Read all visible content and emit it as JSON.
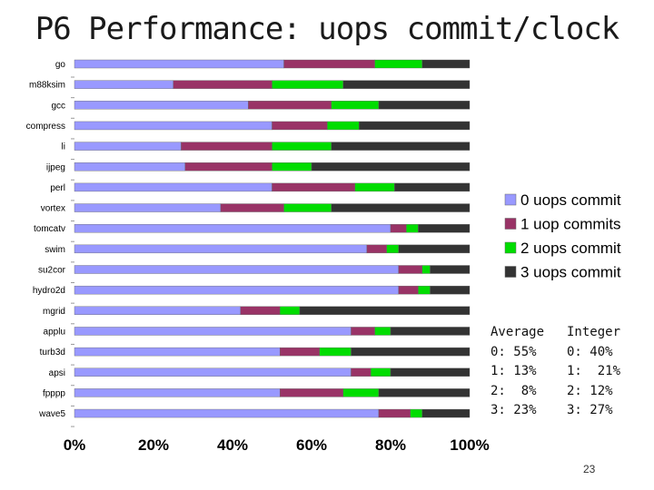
{
  "title": "P6 Performance: uops commit/clock",
  "page_number": "23",
  "stats": {
    "average": {
      "header": "Average",
      "lines": [
        "0: 55%",
        "1: 13%",
        "2:  8%",
        "3: 23%"
      ]
    },
    "integer": {
      "header": "Integer",
      "lines": [
        "0: 40%",
        "1:  21%",
        "2: 12%",
        "3: 27%"
      ]
    }
  },
  "chart_data": {
    "type": "bar",
    "orientation": "horizontal",
    "stacked": true,
    "percent_stacked": true,
    "categories": [
      "go",
      "m88ksim",
      "gcc",
      "compress",
      "li",
      "ijpeg",
      "perl",
      "vortex",
      "tomcatv",
      "swim",
      "su2cor",
      "hydro2d",
      "mgrid",
      "applu",
      "turb3d",
      "apsi",
      "fpppp",
      "wave5"
    ],
    "series": [
      {
        "name": "0 uops commit",
        "color": "#9999ff",
        "values": [
          53,
          25,
          44,
          50,
          27,
          28,
          50,
          37,
          80,
          74,
          82,
          82,
          42,
          70,
          52,
          70,
          52,
          77
        ]
      },
      {
        "name": "1 uop commits",
        "color": "#993366",
        "values": [
          23,
          25,
          21,
          14,
          23,
          22,
          21,
          16,
          4,
          5,
          6,
          5,
          10,
          6,
          10,
          5,
          16,
          8
        ]
      },
      {
        "name": "2 uops commit",
        "color": "#00dd00",
        "values": [
          12,
          18,
          12,
          8,
          15,
          10,
          10,
          12,
          3,
          3,
          2,
          3,
          5,
          4,
          8,
          5,
          9,
          3
        ]
      },
      {
        "name": "3 uops commit",
        "color": "#333333",
        "values": [
          12,
          32,
          23,
          28,
          35,
          40,
          19,
          35,
          13,
          18,
          10,
          10,
          43,
          20,
          30,
          20,
          23,
          12
        ]
      }
    ],
    "xticks": [
      "0%",
      "20%",
      "40%",
      "60%",
      "80%",
      "100%"
    ],
    "xlim": [
      0,
      100
    ],
    "legend_position": "right",
    "grid": false
  }
}
